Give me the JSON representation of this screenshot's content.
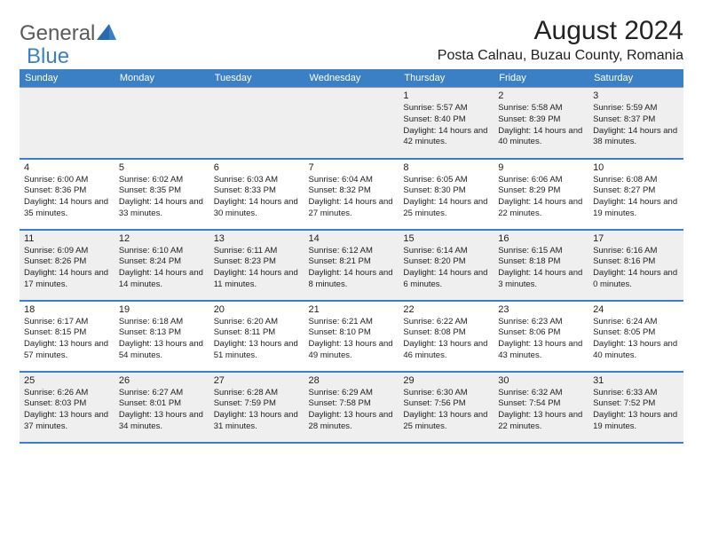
{
  "logo": {
    "text1": "General",
    "text2": "Blue"
  },
  "title": "August 2024",
  "location": "Posta Calnau, Buzau County, Romania",
  "colors": {
    "header_bg": "#3b7fc4",
    "header_text": "#ffffff",
    "row_alt_bg": "#efefef",
    "row_bg": "#ffffff",
    "border": "#3b7fc4",
    "logo_gray": "#5a5a5a",
    "logo_blue": "#3b7fc4",
    "text": "#222222"
  },
  "day_headers": [
    "Sunday",
    "Monday",
    "Tuesday",
    "Wednesday",
    "Thursday",
    "Friday",
    "Saturday"
  ],
  "weeks": [
    [
      null,
      null,
      null,
      null,
      {
        "n": "1",
        "sr": "5:57 AM",
        "ss": "8:40 PM",
        "dh": "14",
        "dm": "42"
      },
      {
        "n": "2",
        "sr": "5:58 AM",
        "ss": "8:39 PM",
        "dh": "14",
        "dm": "40"
      },
      {
        "n": "3",
        "sr": "5:59 AM",
        "ss": "8:37 PM",
        "dh": "14",
        "dm": "38"
      }
    ],
    [
      {
        "n": "4",
        "sr": "6:00 AM",
        "ss": "8:36 PM",
        "dh": "14",
        "dm": "35"
      },
      {
        "n": "5",
        "sr": "6:02 AM",
        "ss": "8:35 PM",
        "dh": "14",
        "dm": "33"
      },
      {
        "n": "6",
        "sr": "6:03 AM",
        "ss": "8:33 PM",
        "dh": "14",
        "dm": "30"
      },
      {
        "n": "7",
        "sr": "6:04 AM",
        "ss": "8:32 PM",
        "dh": "14",
        "dm": "27"
      },
      {
        "n": "8",
        "sr": "6:05 AM",
        "ss": "8:30 PM",
        "dh": "14",
        "dm": "25"
      },
      {
        "n": "9",
        "sr": "6:06 AM",
        "ss": "8:29 PM",
        "dh": "14",
        "dm": "22"
      },
      {
        "n": "10",
        "sr": "6:08 AM",
        "ss": "8:27 PM",
        "dh": "14",
        "dm": "19"
      }
    ],
    [
      {
        "n": "11",
        "sr": "6:09 AM",
        "ss": "8:26 PM",
        "dh": "14",
        "dm": "17"
      },
      {
        "n": "12",
        "sr": "6:10 AM",
        "ss": "8:24 PM",
        "dh": "14",
        "dm": "14"
      },
      {
        "n": "13",
        "sr": "6:11 AM",
        "ss": "8:23 PM",
        "dh": "14",
        "dm": "11"
      },
      {
        "n": "14",
        "sr": "6:12 AM",
        "ss": "8:21 PM",
        "dh": "14",
        "dm": "8"
      },
      {
        "n": "15",
        "sr": "6:14 AM",
        "ss": "8:20 PM",
        "dh": "14",
        "dm": "6"
      },
      {
        "n": "16",
        "sr": "6:15 AM",
        "ss": "8:18 PM",
        "dh": "14",
        "dm": "3"
      },
      {
        "n": "17",
        "sr": "6:16 AM",
        "ss": "8:16 PM",
        "dh": "14",
        "dm": "0"
      }
    ],
    [
      {
        "n": "18",
        "sr": "6:17 AM",
        "ss": "8:15 PM",
        "dh": "13",
        "dm": "57"
      },
      {
        "n": "19",
        "sr": "6:18 AM",
        "ss": "8:13 PM",
        "dh": "13",
        "dm": "54"
      },
      {
        "n": "20",
        "sr": "6:20 AM",
        "ss": "8:11 PM",
        "dh": "13",
        "dm": "51"
      },
      {
        "n": "21",
        "sr": "6:21 AM",
        "ss": "8:10 PM",
        "dh": "13",
        "dm": "49"
      },
      {
        "n": "22",
        "sr": "6:22 AM",
        "ss": "8:08 PM",
        "dh": "13",
        "dm": "46"
      },
      {
        "n": "23",
        "sr": "6:23 AM",
        "ss": "8:06 PM",
        "dh": "13",
        "dm": "43"
      },
      {
        "n": "24",
        "sr": "6:24 AM",
        "ss": "8:05 PM",
        "dh": "13",
        "dm": "40"
      }
    ],
    [
      {
        "n": "25",
        "sr": "6:26 AM",
        "ss": "8:03 PM",
        "dh": "13",
        "dm": "37"
      },
      {
        "n": "26",
        "sr": "6:27 AM",
        "ss": "8:01 PM",
        "dh": "13",
        "dm": "34"
      },
      {
        "n": "27",
        "sr": "6:28 AM",
        "ss": "7:59 PM",
        "dh": "13",
        "dm": "31"
      },
      {
        "n": "28",
        "sr": "6:29 AM",
        "ss": "7:58 PM",
        "dh": "13",
        "dm": "28"
      },
      {
        "n": "29",
        "sr": "6:30 AM",
        "ss": "7:56 PM",
        "dh": "13",
        "dm": "25"
      },
      {
        "n": "30",
        "sr": "6:32 AM",
        "ss": "7:54 PM",
        "dh": "13",
        "dm": "22"
      },
      {
        "n": "31",
        "sr": "6:33 AM",
        "ss": "7:52 PM",
        "dh": "13",
        "dm": "19"
      }
    ]
  ],
  "labels": {
    "sunrise": "Sunrise:",
    "sunset": "Sunset:",
    "daylight_prefix": "Daylight:",
    "hours_word": "hours",
    "and_word": "and",
    "minutes_word": "minutes."
  }
}
